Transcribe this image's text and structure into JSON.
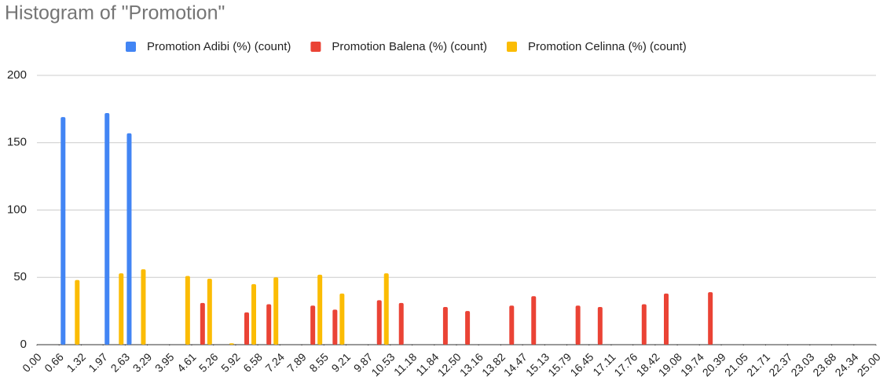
{
  "chart_data": {
    "type": "histogram",
    "title": "Histogram of \"Promotion\"",
    "bins": [
      0,
      0.66,
      1.32,
      1.97,
      2.63,
      3.29,
      3.95,
      4.61,
      5.26,
      5.92,
      6.58,
      7.24,
      7.89,
      8.55,
      9.21,
      9.87,
      10.53,
      11.18,
      11.84,
      12.5,
      13.16,
      13.82,
      14.47,
      15.13,
      15.79,
      16.45,
      17.11,
      17.76,
      18.42,
      19.08,
      19.74,
      20.39,
      21.05,
      21.71,
      22.37,
      23.03,
      23.68,
      24.34,
      25
    ],
    "series": [
      {
        "name": "Promotion Adibi (%) (count)",
        "color": "#4285f4",
        "values": [
          0,
          169,
          0,
          172,
          157,
          0,
          0,
          0,
          0,
          0,
          0,
          0,
          0,
          0,
          0,
          0,
          0,
          0,
          0,
          0,
          0,
          0,
          0,
          0,
          0,
          0,
          0,
          0,
          0,
          0,
          0,
          0,
          0,
          0,
          0,
          0,
          0,
          0
        ]
      },
      {
        "name": "Promotion Balena (%) (count)",
        "color": "#ea4335",
        "values": [
          0,
          0,
          0,
          0,
          0,
          0,
          0,
          31,
          0,
          24,
          30,
          0,
          29,
          26,
          0,
          33,
          31,
          0,
          28,
          25,
          0,
          29,
          36,
          0,
          29,
          28,
          0,
          30,
          38,
          0,
          39,
          0,
          0,
          0,
          0,
          0,
          0,
          0
        ]
      },
      {
        "name": "Promotion Celinna (%) (count)",
        "color": "#fbbc04",
        "values": [
          0,
          48,
          0,
          53,
          56,
          0,
          51,
          49,
          1,
          45,
          50,
          0,
          52,
          38,
          0,
          53,
          0,
          0,
          0,
          0,
          0,
          0,
          0,
          0,
          0,
          0,
          0,
          0,
          0,
          0,
          0,
          0,
          0,
          0,
          0,
          0,
          0,
          0
        ]
      }
    ],
    "xlim": [
      0,
      25
    ],
    "xticks": [
      {
        "value": 0,
        "label": "0.00"
      },
      0.66,
      1.32,
      1.97,
      2.63,
      3.29,
      3.95,
      4.61,
      5.26,
      5.92,
      6.58,
      7.24,
      7.89,
      8.55,
      9.21,
      9.87,
      10.53,
      11.18,
      11.84,
      {
        "value": 12.5,
        "label": "12.50"
      },
      13.16,
      13.82,
      14.47,
      15.13,
      15.79,
      16.45,
      17.11,
      17.76,
      18.42,
      19.08,
      19.74,
      20.39,
      21.05,
      21.71,
      22.37,
      23.03,
      23.68,
      24.34,
      {
        "value": 25,
        "label": "25.00"
      }
    ],
    "ylim": [
      0,
      200
    ],
    "yticks": [
      0,
      50,
      100,
      150,
      200
    ],
    "grid": true,
    "legend": "top"
  }
}
